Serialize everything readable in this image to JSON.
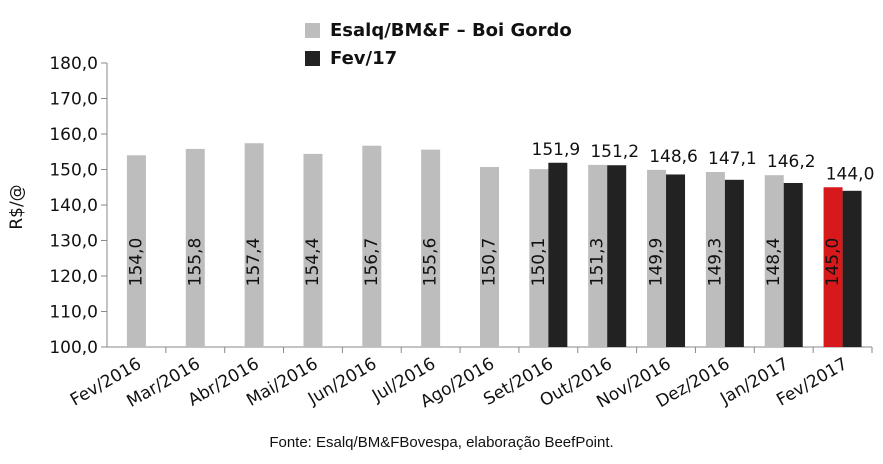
{
  "chart_data": {
    "type": "bar",
    "ylabel": "R$/@",
    "ylim": [
      100,
      180
    ],
    "yticks": [
      "100,0",
      "110,0",
      "120,0",
      "130,0",
      "140,0",
      "150,0",
      "160,0",
      "170,0",
      "180,0"
    ],
    "categories": [
      "Fev/2016",
      "Mar/2016",
      "Abr/2016",
      "Mai/2016",
      "Jun/2016",
      "Jul/2016",
      "Ago/2016",
      "Set/2016",
      "Out/2016",
      "Nov/2016",
      "Dez/2016",
      "Jan/2017",
      "Fev/2017"
    ],
    "series": [
      {
        "name": "Esalq/BM&F – Boi Gordo",
        "color": "#bdbdbd",
        "values": [
          154.0,
          155.8,
          157.4,
          154.4,
          156.7,
          155.6,
          150.7,
          150.1,
          151.3,
          149.9,
          149.3,
          148.4,
          145.0
        ],
        "labels": [
          "154,0",
          "155,8",
          "157,4",
          "154,4",
          "156,7",
          "155,6",
          "150,7",
          "150,1",
          "151,3",
          "149,9",
          "149,3",
          "148,4",
          "145,0"
        ],
        "highlight_index": 12,
        "highlight_color": "#d7191c"
      },
      {
        "name": "Fev/17",
        "color": "#222222",
        "values": [
          null,
          null,
          null,
          null,
          null,
          null,
          null,
          151.9,
          151.2,
          148.6,
          147.1,
          146.2,
          144.0
        ],
        "labels": [
          "",
          "",
          "",
          "",
          "",
          "",
          "",
          "151,9",
          "151,2",
          "148,6",
          "147,1",
          "146,2",
          "144,0"
        ]
      }
    ],
    "grid": false,
    "legend_position": "top"
  },
  "source": "Fonte: Esalq/BM&FBovespa, elaboração BeefPoint."
}
